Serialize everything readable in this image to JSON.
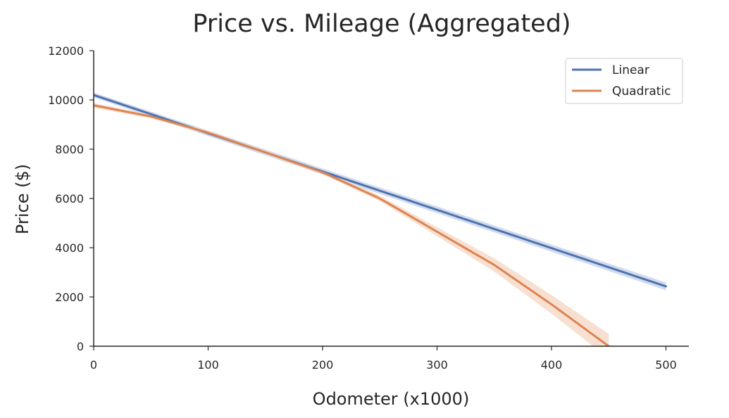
{
  "chart_data": {
    "type": "line",
    "title": "Price vs. Mileage (Aggregated)",
    "xlabel": "Odometer (x1000)",
    "ylabel": "Price ($)",
    "xlim": [
      0,
      520
    ],
    "ylim": [
      0,
      12000
    ],
    "x_ticks": [
      0,
      100,
      200,
      300,
      400,
      500
    ],
    "y_ticks": [
      0,
      2000,
      4000,
      6000,
      8000,
      10000,
      12000
    ],
    "grid": false,
    "legend_position": "top-right",
    "series": [
      {
        "name": "Linear",
        "color": "#4c72b0",
        "ci_color": "#c9d5ea",
        "x": [
          0,
          500
        ],
        "y": [
          10200,
          2430
        ],
        "ci_halfwidth": [
          100,
          160
        ]
      },
      {
        "name": "Quadratic",
        "color": "#dd8452",
        "ci_color": "#f6dbc9",
        "x": [
          0,
          50,
          100,
          150,
          200,
          250,
          300,
          350,
          400,
          450
        ],
        "y": [
          9780,
          9330,
          8670,
          7870,
          7060,
          6000,
          4650,
          3300,
          1700,
          0
        ],
        "ci_halfwidth": [
          100,
          80,
          70,
          70,
          80,
          110,
          180,
          270,
          380,
          500
        ]
      }
    ]
  }
}
